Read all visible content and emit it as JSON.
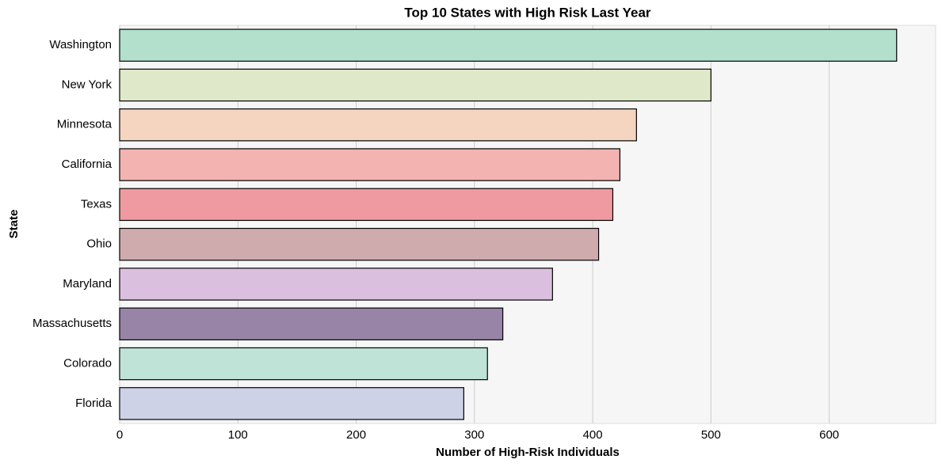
{
  "chart_data": {
    "type": "barh",
    "title": "Top 10 States with High Risk Last Year",
    "xlabel": "Number of High-Risk Individuals",
    "ylabel": "State",
    "categories": [
      "Washington",
      "New York",
      "Minnesota",
      "California",
      "Texas",
      "Ohio",
      "Maryland",
      "Massachusetts",
      "Colorado",
      "Florida"
    ],
    "values": [
      657,
      500,
      437,
      423,
      417,
      405,
      366,
      324,
      311,
      291
    ],
    "colors": [
      "#b2e0cc",
      "#dfe8c8",
      "#f5d5c0",
      "#f2b3b1",
      "#ef9aa0",
      "#cfabae",
      "#dac0de",
      "#9784a7",
      "#bfe4d7",
      "#cdd2e6"
    ],
    "xlim": [
      0,
      690
    ],
    "xticks": [
      0,
      100,
      200,
      300,
      400,
      500,
      600
    ],
    "grid": true
  }
}
